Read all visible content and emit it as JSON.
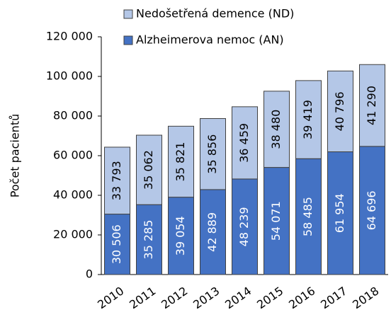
{
  "chart_data": {
    "type": "bar",
    "stacked": true,
    "ylabel": "Počet pacientů",
    "categories": [
      "2010",
      "2011",
      "2012",
      "2013",
      "2014",
      "2015",
      "2016",
      "2017",
      "2018"
    ],
    "series": [
      {
        "name": "Alzheimerova nemoc (AN)",
        "color": "#4472c4",
        "label_color": "#ffffff",
        "values": [
          30506,
          35285,
          39054,
          42889,
          48239,
          54071,
          58485,
          61954,
          64696
        ],
        "value_labels": [
          "30 506",
          "35 285",
          "39 054",
          "42 889",
          "48 239",
          "54 071",
          "58 485",
          "61 954",
          "64 696"
        ]
      },
      {
        "name": "Nedošetřená demence (ND)",
        "color": "#b4c7e7",
        "label_color": "#000000",
        "values": [
          33793,
          35062,
          35821,
          35856,
          36459,
          38480,
          39419,
          40796,
          41290
        ],
        "value_labels": [
          "33 793",
          "35 062",
          "35 821",
          "35 856",
          "36 459",
          "38 480",
          "39 419",
          "40 796",
          "41 290"
        ]
      }
    ],
    "ylim": [
      0,
      120000
    ],
    "yticks": [
      0,
      {
        "value": 20000,
        "label": "20 000"
      },
      {
        "value": 40000,
        "label": "40 000"
      },
      {
        "value": 60000,
        "label": "60 000"
      },
      {
        "value": 80000,
        "label": "80 000"
      },
      {
        "value": 100000,
        "label": "100 000"
      },
      {
        "value": 120000,
        "label": "120 000"
      }
    ],
    "grid": false
  }
}
